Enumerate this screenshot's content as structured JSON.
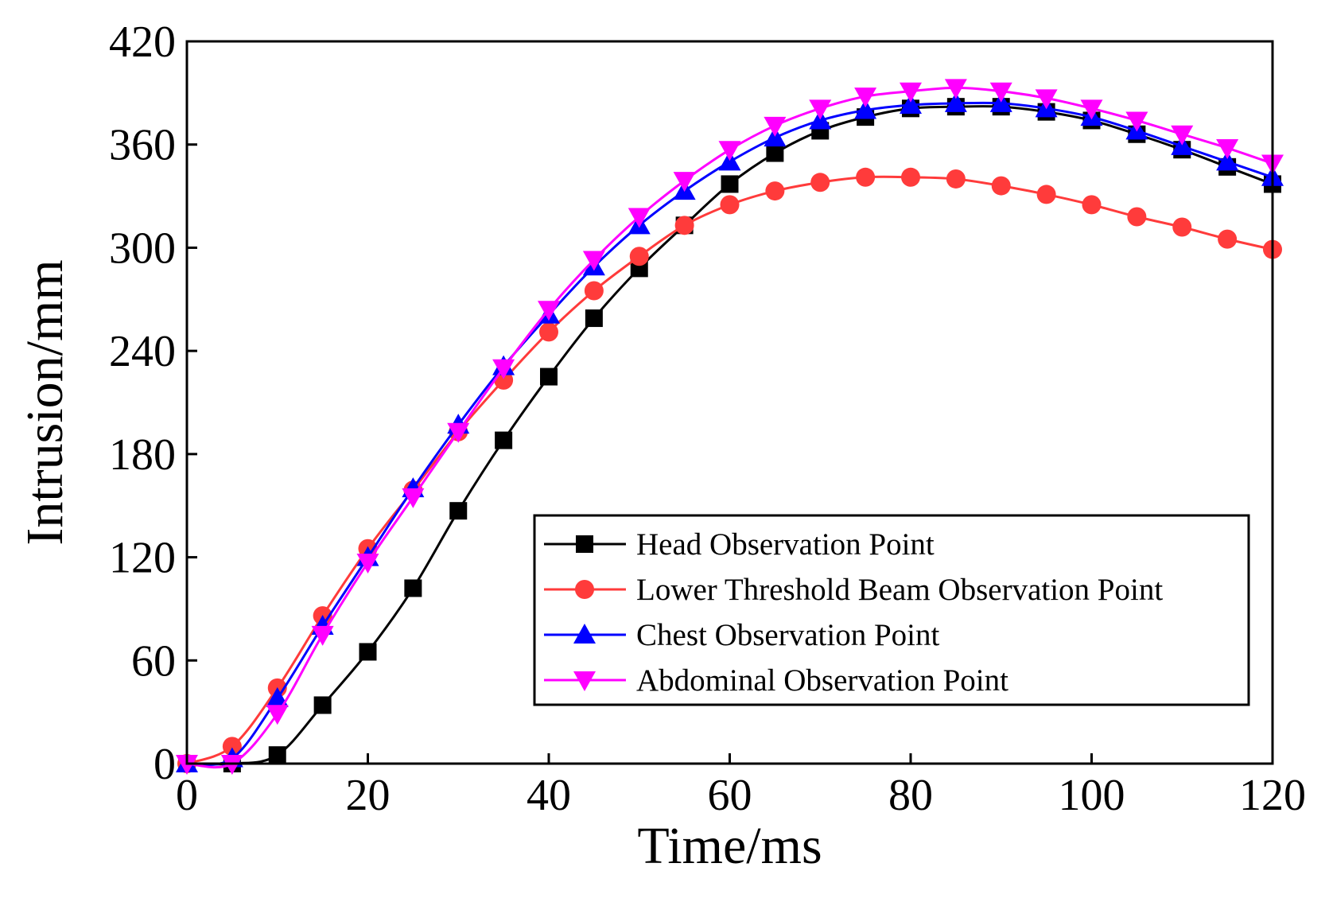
{
  "chart_data": {
    "type": "line",
    "title": "",
    "xlabel": "Time/ms",
    "ylabel": "Intrusion/mm",
    "xlim": [
      0,
      120
    ],
    "ylim": [
      0,
      420
    ],
    "xticks": [
      0,
      20,
      40,
      60,
      80,
      100,
      120
    ],
    "yticks": [
      0,
      60,
      120,
      180,
      240,
      300,
      360,
      420
    ],
    "xtick_labels": [
      "0",
      "20",
      "40",
      "60",
      "80",
      "100",
      "120"
    ],
    "ytick_labels": [
      "0",
      "60",
      "120",
      "180",
      "240",
      "300",
      "360",
      "420"
    ],
    "grid": false,
    "legend_position": "lower-right",
    "x": [
      0,
      5,
      10,
      15,
      20,
      25,
      30,
      35,
      40,
      45,
      50,
      55,
      60,
      65,
      70,
      75,
      80,
      85,
      90,
      95,
      100,
      105,
      110,
      115,
      120
    ],
    "series": [
      {
        "name": "Head Observation Point",
        "color": "#000000",
        "marker": "square",
        "values": [
          0,
          0,
          5,
          34,
          65,
          102,
          147,
          188,
          225,
          259,
          288,
          313,
          337,
          355,
          368,
          376,
          381,
          382,
          382,
          379,
          374,
          366,
          357,
          347,
          337
        ]
      },
      {
        "name": "Lower Threshold Beam Observation Point",
        "color": "#ff3b3b",
        "marker": "circle",
        "values": [
          0,
          10,
          44,
          86,
          125,
          159,
          193,
          223,
          251,
          275,
          295,
          313,
          325,
          333,
          338,
          341,
          341,
          340,
          336,
          331,
          325,
          318,
          312,
          305,
          299
        ]
      },
      {
        "name": "Chest Observation Point",
        "color": "#0000ff",
        "marker": "triangle-up",
        "values": [
          0,
          3,
          38,
          80,
          120,
          160,
          197,
          231,
          261,
          289,
          313,
          333,
          350,
          364,
          374,
          380,
          383,
          384,
          384,
          381,
          376,
          368,
          359,
          350,
          341
        ]
      },
      {
        "name": "Abdominal Observation Point",
        "color": "#ff00ff",
        "marker": "triangle-down",
        "values": [
          0,
          0,
          29,
          75,
          117,
          155,
          193,
          230,
          264,
          293,
          318,
          339,
          357,
          371,
          381,
          388,
          391,
          393,
          391,
          387,
          381,
          374,
          366,
          358,
          349
        ]
      }
    ]
  }
}
